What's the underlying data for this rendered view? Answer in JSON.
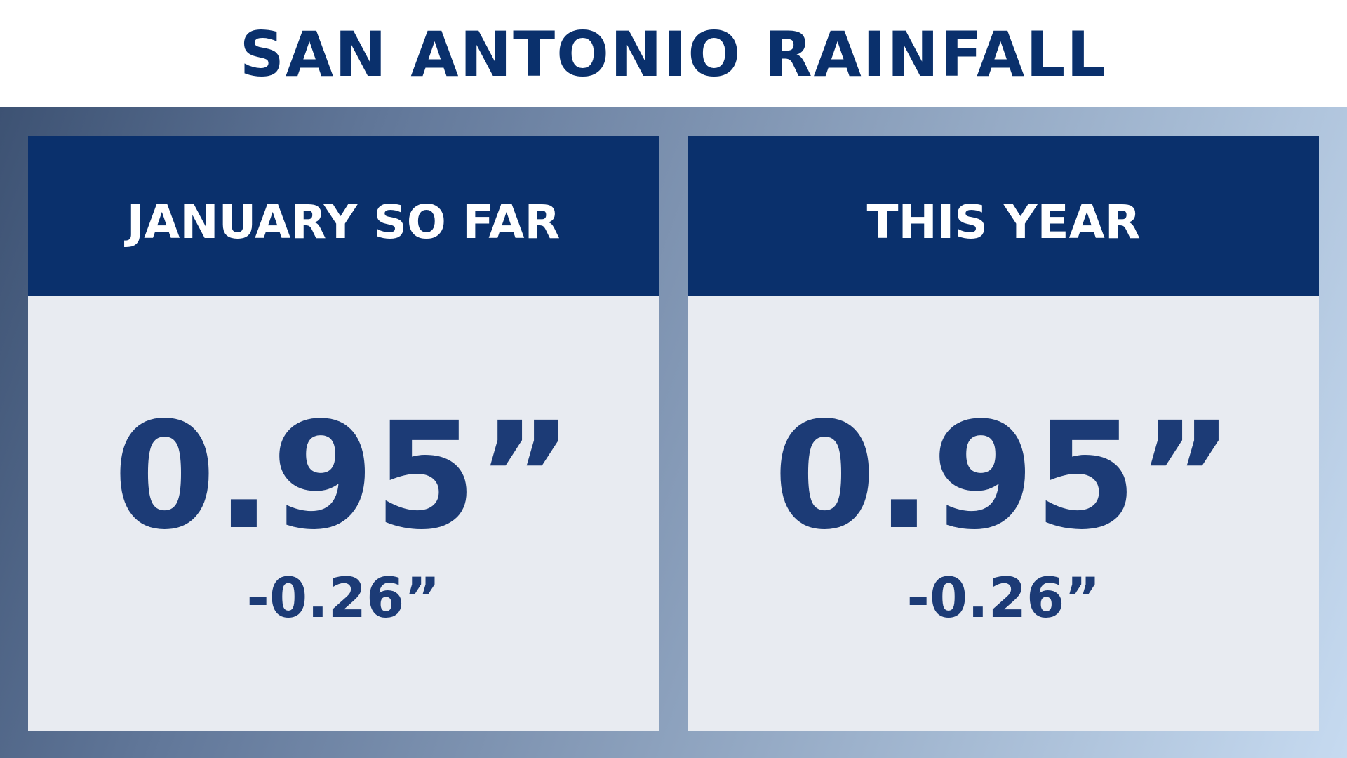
{
  "header": {
    "title": "SAN ANTONIO RAINFALL"
  },
  "panels": [
    {
      "label": "JANUARY SO FAR",
      "value": "0.95”",
      "departure": "-0.26”"
    },
    {
      "label": "THIS YEAR",
      "value": "0.95”",
      "departure": "-0.26”"
    }
  ],
  "colors": {
    "navy": "#0a306c",
    "value_text": "#1c3b76",
    "panel_body": "#e8ebf1"
  }
}
